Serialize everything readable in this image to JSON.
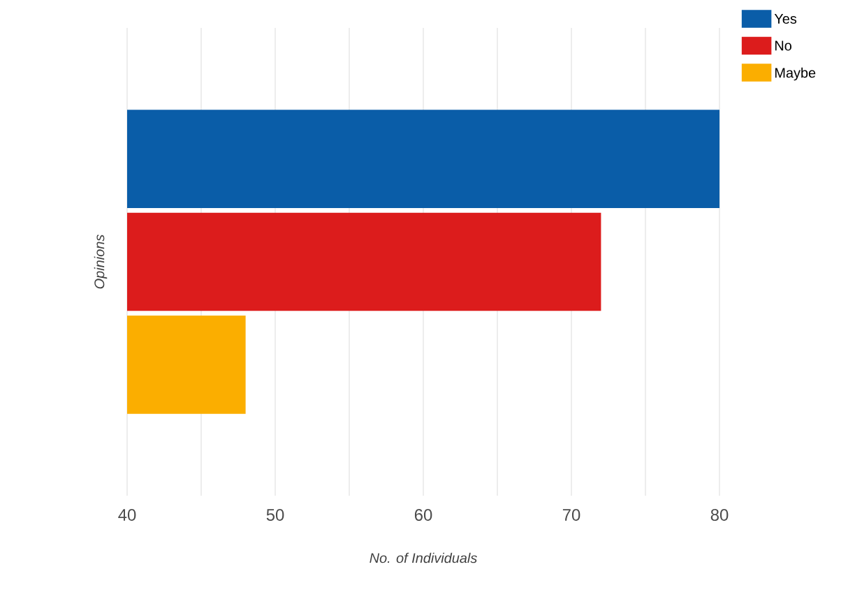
{
  "chart_data": {
    "type": "bar",
    "orientation": "horizontal",
    "xlabel": "No. of Individuals",
    "ylabel": "Opinions",
    "categories": [
      null
    ],
    "series": [
      {
        "name": "Yes",
        "color": "#0a5da8",
        "values": [
          80
        ]
      },
      {
        "name": "No",
        "color": "#dc1c1c",
        "values": [
          72
        ]
      },
      {
        "name": "Maybe",
        "color": "#fbae00",
        "values": [
          48
        ]
      }
    ],
    "xlim": [
      40,
      80
    ],
    "xticks": [
      40,
      {
        "value": 45,
        "label": null
      },
      50,
      {
        "value": 55,
        "label": null
      },
      60,
      {
        "value": 65,
        "label": null
      },
      70,
      {
        "value": 75,
        "label": null
      },
      80
    ],
    "grid": "x",
    "legend": "top right"
  }
}
